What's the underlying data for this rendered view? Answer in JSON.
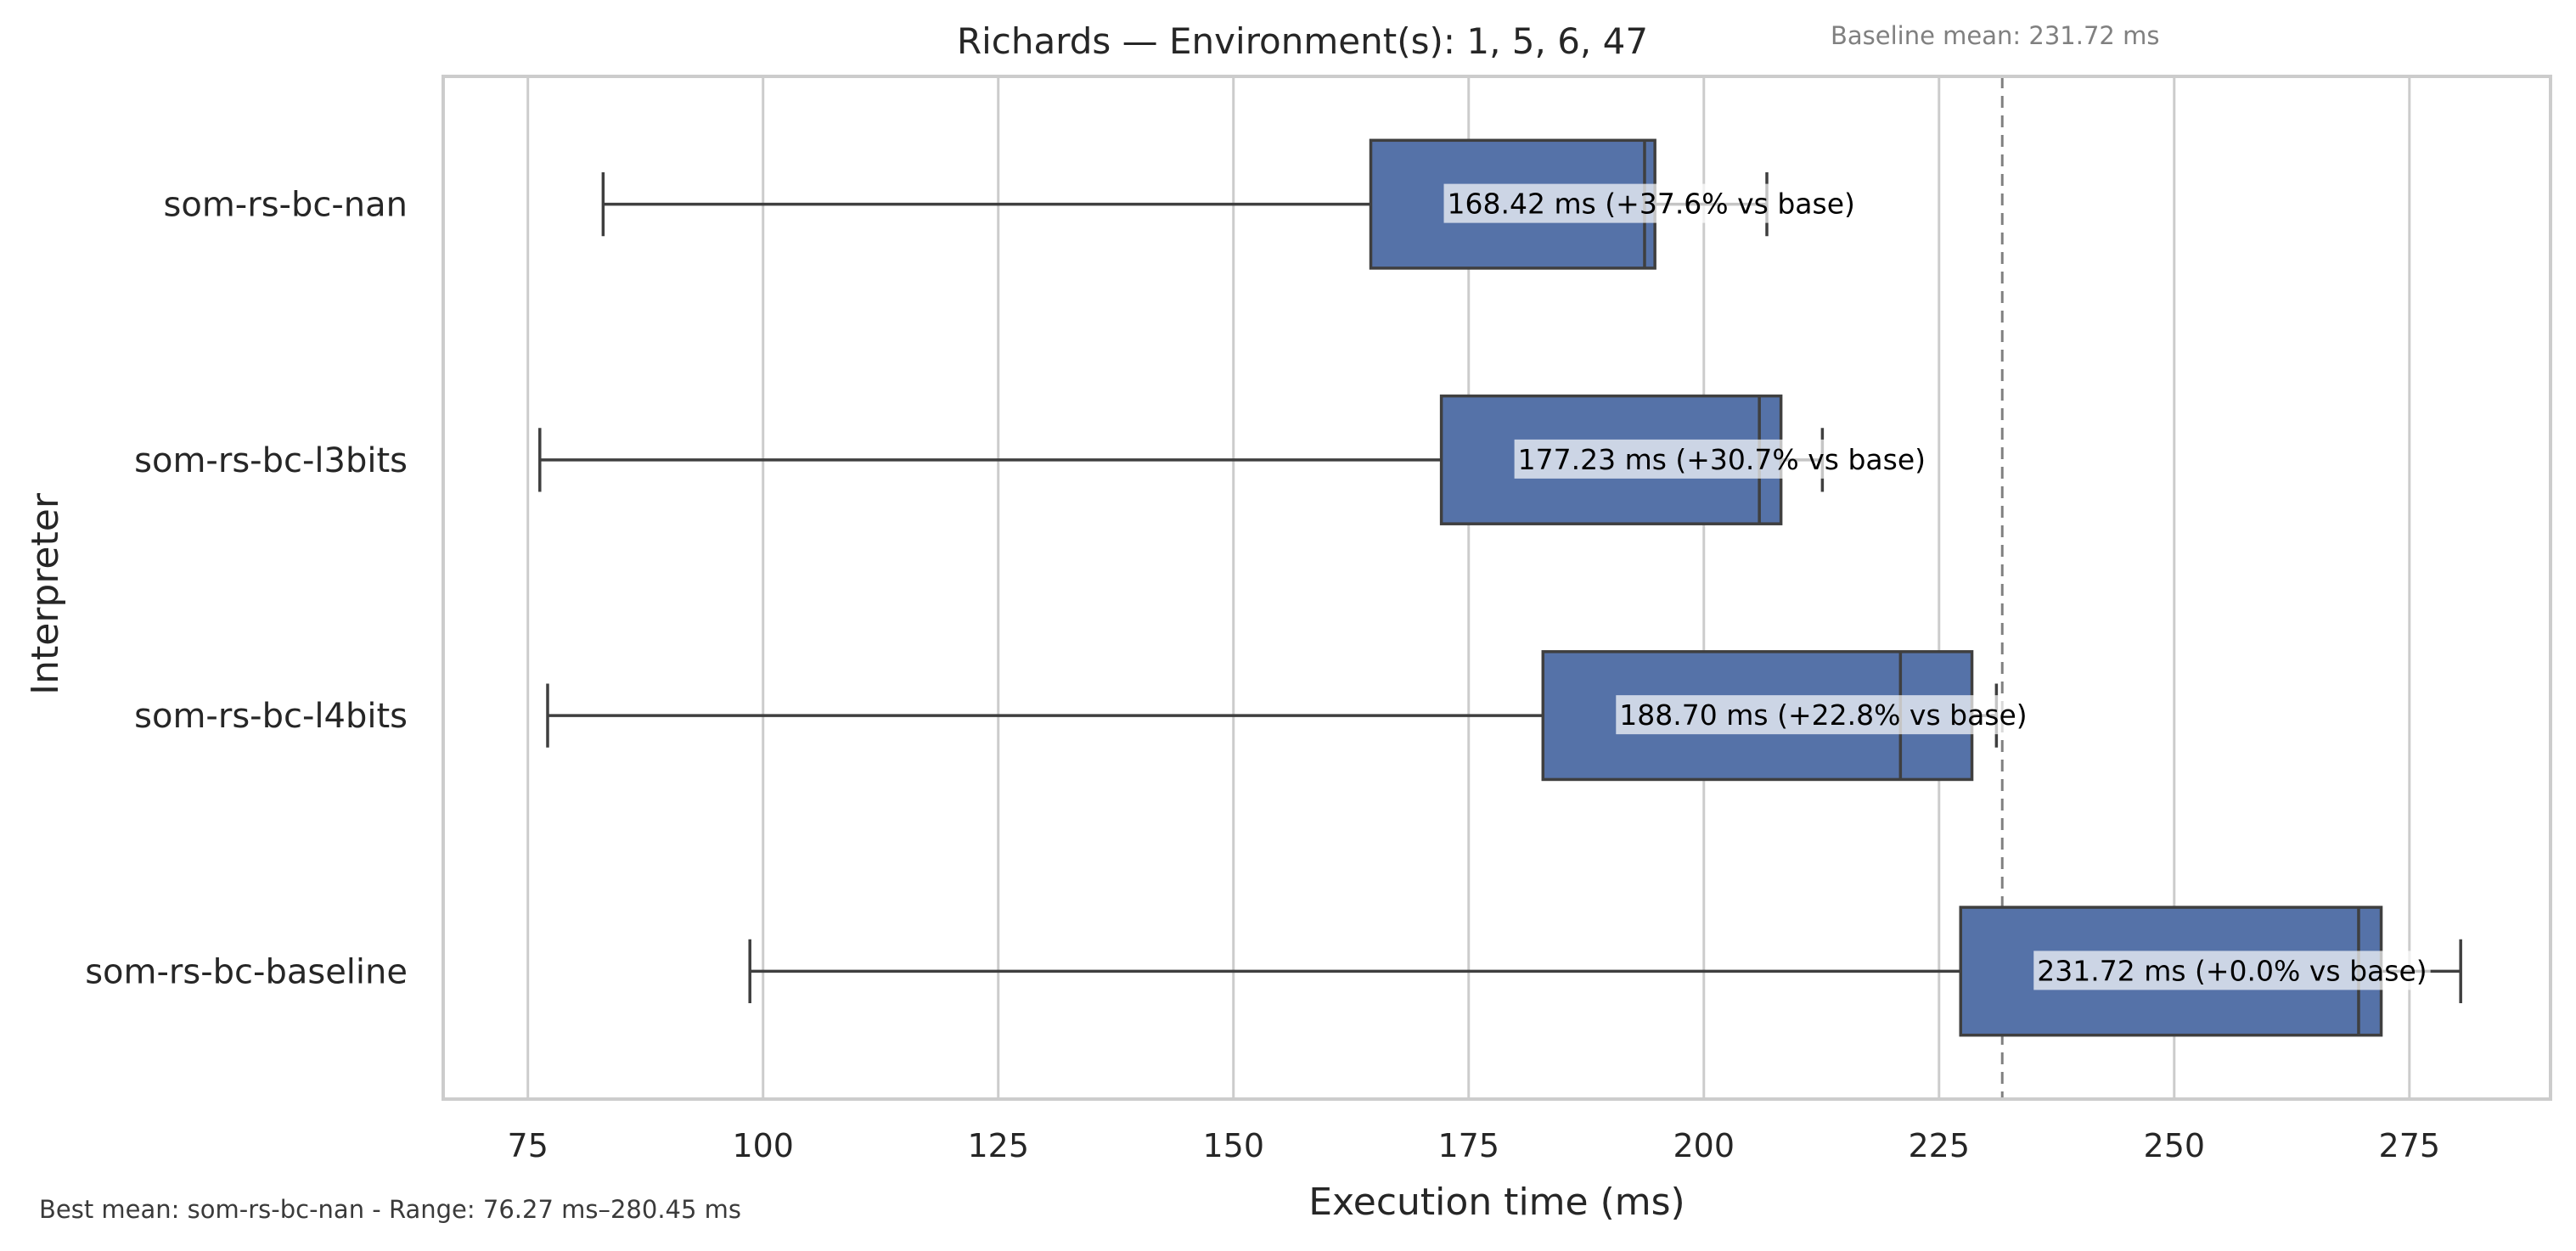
{
  "chart_data": {
    "type": "box",
    "orientation": "horizontal",
    "title": "Richards — Environment(s): 1, 5, 6, 47",
    "xlabel": "Execution time (ms)",
    "ylabel": "Interpreter",
    "xlim": [
      66,
      290
    ],
    "xticks": [
      75,
      100,
      125,
      150,
      175,
      200,
      225,
      250,
      275
    ],
    "grid": "vertical",
    "box_color": "#5572a8",
    "categories": [
      "som-rs-bc-nan",
      "som-rs-bc-l3bits",
      "som-rs-bc-l4bits",
      "som-rs-bc-baseline"
    ],
    "boxes": [
      {
        "name": "som-rs-bc-nan",
        "whisker_low": 83,
        "q1": 164.6,
        "median": 193.7,
        "q3": 194.8,
        "whisker_high": 206.7,
        "label": "168.42 ms  (+37.6% vs base)"
      },
      {
        "name": "som-rs-bc-l3bits",
        "whisker_low": 76.27,
        "q1": 172.1,
        "median": 205.9,
        "q3": 208.2,
        "whisker_high": 212.6,
        "label": "177.23 ms  (+30.7% vs base)"
      },
      {
        "name": "som-rs-bc-l4bits",
        "whisker_low": 77.1,
        "q1": 182.9,
        "median": 220.9,
        "q3": 228.5,
        "whisker_high": 231.1,
        "label": "188.70 ms  (+22.8% vs base)"
      },
      {
        "name": "som-rs-bc-baseline",
        "whisker_low": 98.6,
        "q1": 227.3,
        "median": 269.6,
        "q3": 272.0,
        "whisker_high": 280.45,
        "label": "231.72 ms  (+0.0% vs base)"
      }
    ],
    "baseline": {
      "value": 231.72,
      "label": "Baseline mean: 231.72 ms"
    },
    "footer": "Best mean: som-rs-bc-nan - Range: 76.27 ms–280.45 ms"
  }
}
